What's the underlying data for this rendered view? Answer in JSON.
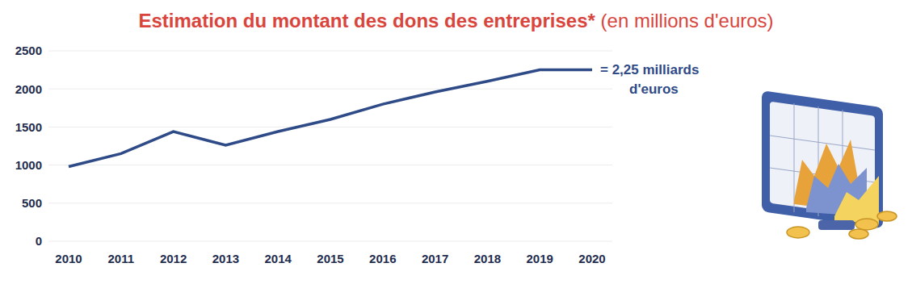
{
  "chart_data": {
    "type": "line",
    "title": "Estimation du montant des dons des entreprises*",
    "subtitle": "(en millions d'euros)",
    "categories": [
      "2010",
      "2011",
      "2012",
      "2013",
      "2014",
      "2015",
      "2016",
      "2017",
      "2018",
      "2019",
      "2020"
    ],
    "values": [
      980,
      1150,
      1440,
      1260,
      1440,
      1600,
      1800,
      1960,
      2100,
      2250,
      2250
    ],
    "color": "#2e4a87",
    "ylim": [
      0,
      2500
    ],
    "yticks": [
      0,
      500,
      1000,
      1500,
      2000,
      2500
    ],
    "grid": true,
    "annotation": "= 2,25 milliards d'euros"
  }
}
